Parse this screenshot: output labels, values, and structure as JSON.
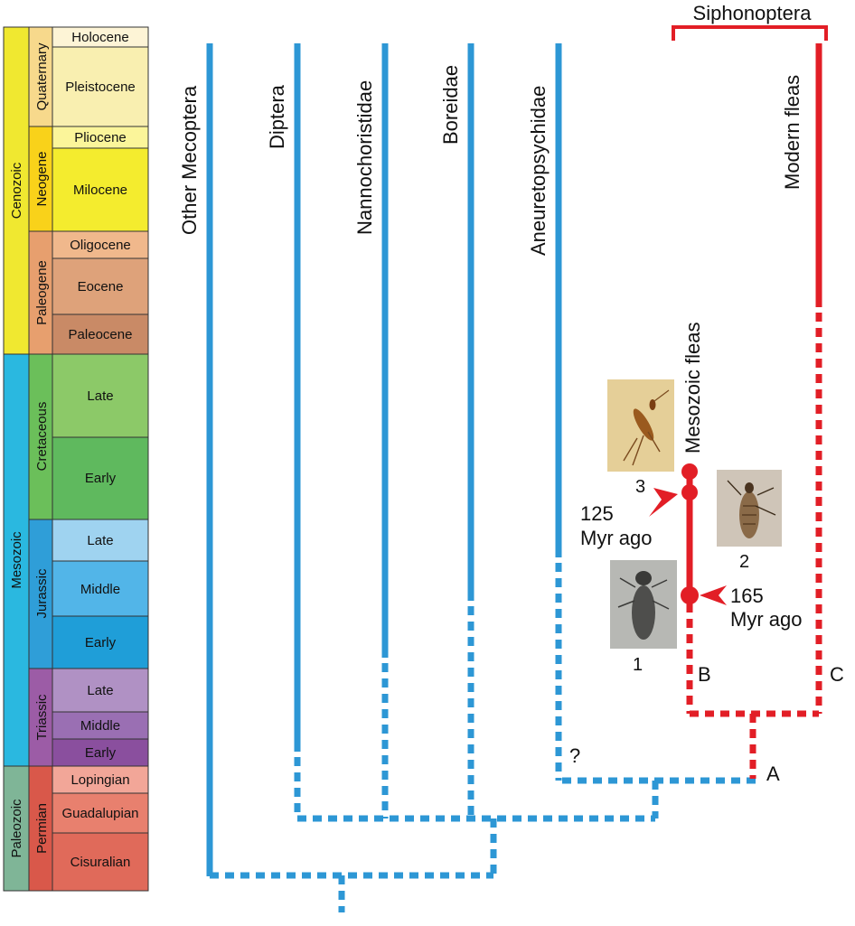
{
  "timescale": {
    "eras": [
      {
        "name": "Cenozoic",
        "color": "#f0e830"
      },
      {
        "name": "Mesozoic",
        "color": "#2ab8e0"
      },
      {
        "name": "Paleozoic",
        "color": "#7fb597"
      }
    ],
    "periods": [
      {
        "name": "Quaternary",
        "color": "#f7d98c"
      },
      {
        "name": "Neogene",
        "color": "#f9d21a"
      },
      {
        "name": "Paleogene",
        "color": "#e79f6e"
      },
      {
        "name": "Cretaceous",
        "color": "#6bbf5a"
      },
      {
        "name": "Jurassic",
        "color": "#2f9ed8"
      },
      {
        "name": "Triassic",
        "color": "#9c5ca6"
      },
      {
        "name": "Permian",
        "color": "#d9584a"
      }
    ],
    "epochs": [
      {
        "name": "Holocene",
        "color": "#fdf4d6"
      },
      {
        "name": "Pleistocene",
        "color": "#f9efb0"
      },
      {
        "name": "Pliocene",
        "color": "#fbf59a"
      },
      {
        "name": "Milocene",
        "color": "#f4ec2e"
      },
      {
        "name": "Oligocene",
        "color": "#f0b88c"
      },
      {
        "name": "Eocene",
        "color": "#dea27a"
      },
      {
        "name": "Paleocene",
        "color": "#c98a66"
      },
      {
        "name": "Late",
        "color": "#8cc968"
      },
      {
        "name": "Early",
        "color": "#5fb95e"
      },
      {
        "name": "Late",
        "color": "#9fd3f0"
      },
      {
        "name": "Middle",
        "color": "#52b5e8"
      },
      {
        "name": "Early",
        "color": "#1f9ed8"
      },
      {
        "name": "Late",
        "color": "#b091c4"
      },
      {
        "name": "Middle",
        "color": "#9a6fb3"
      },
      {
        "name": "Early",
        "color": "#8a4f9e"
      },
      {
        "name": "Lopingian",
        "color": "#f2a698"
      },
      {
        "name": "Guadalupian",
        "color": "#e8806e"
      },
      {
        "name": "Cisuralian",
        "color": "#e06a5a"
      }
    ]
  },
  "clades": {
    "other_mecoptera": "Other Mecoptera",
    "diptera": "Diptera",
    "nannochoristidae": "Nannochoristidae",
    "boreidae": "Boreidae",
    "aneuretopsychidae": "Aneuretopsychidae",
    "modern_fleas": "Modern fleas",
    "mesozoic_fleas": "Mesozoic fleas",
    "siphonoptera": "Siphonoptera"
  },
  "annotations": {
    "node_a": "A",
    "node_b": "B",
    "node_c": "C",
    "question": "?",
    "age_125_num": "125",
    "age_125_unit": "Myr ago",
    "age_165_num": "165",
    "age_165_unit": "Myr ago",
    "fossil_1": "1",
    "fossil_2": "2",
    "fossil_3": "3"
  },
  "colors": {
    "blue_lineage": "#2d97d5",
    "red_lineage": "#e21e26",
    "bracket": "#e21e26"
  }
}
